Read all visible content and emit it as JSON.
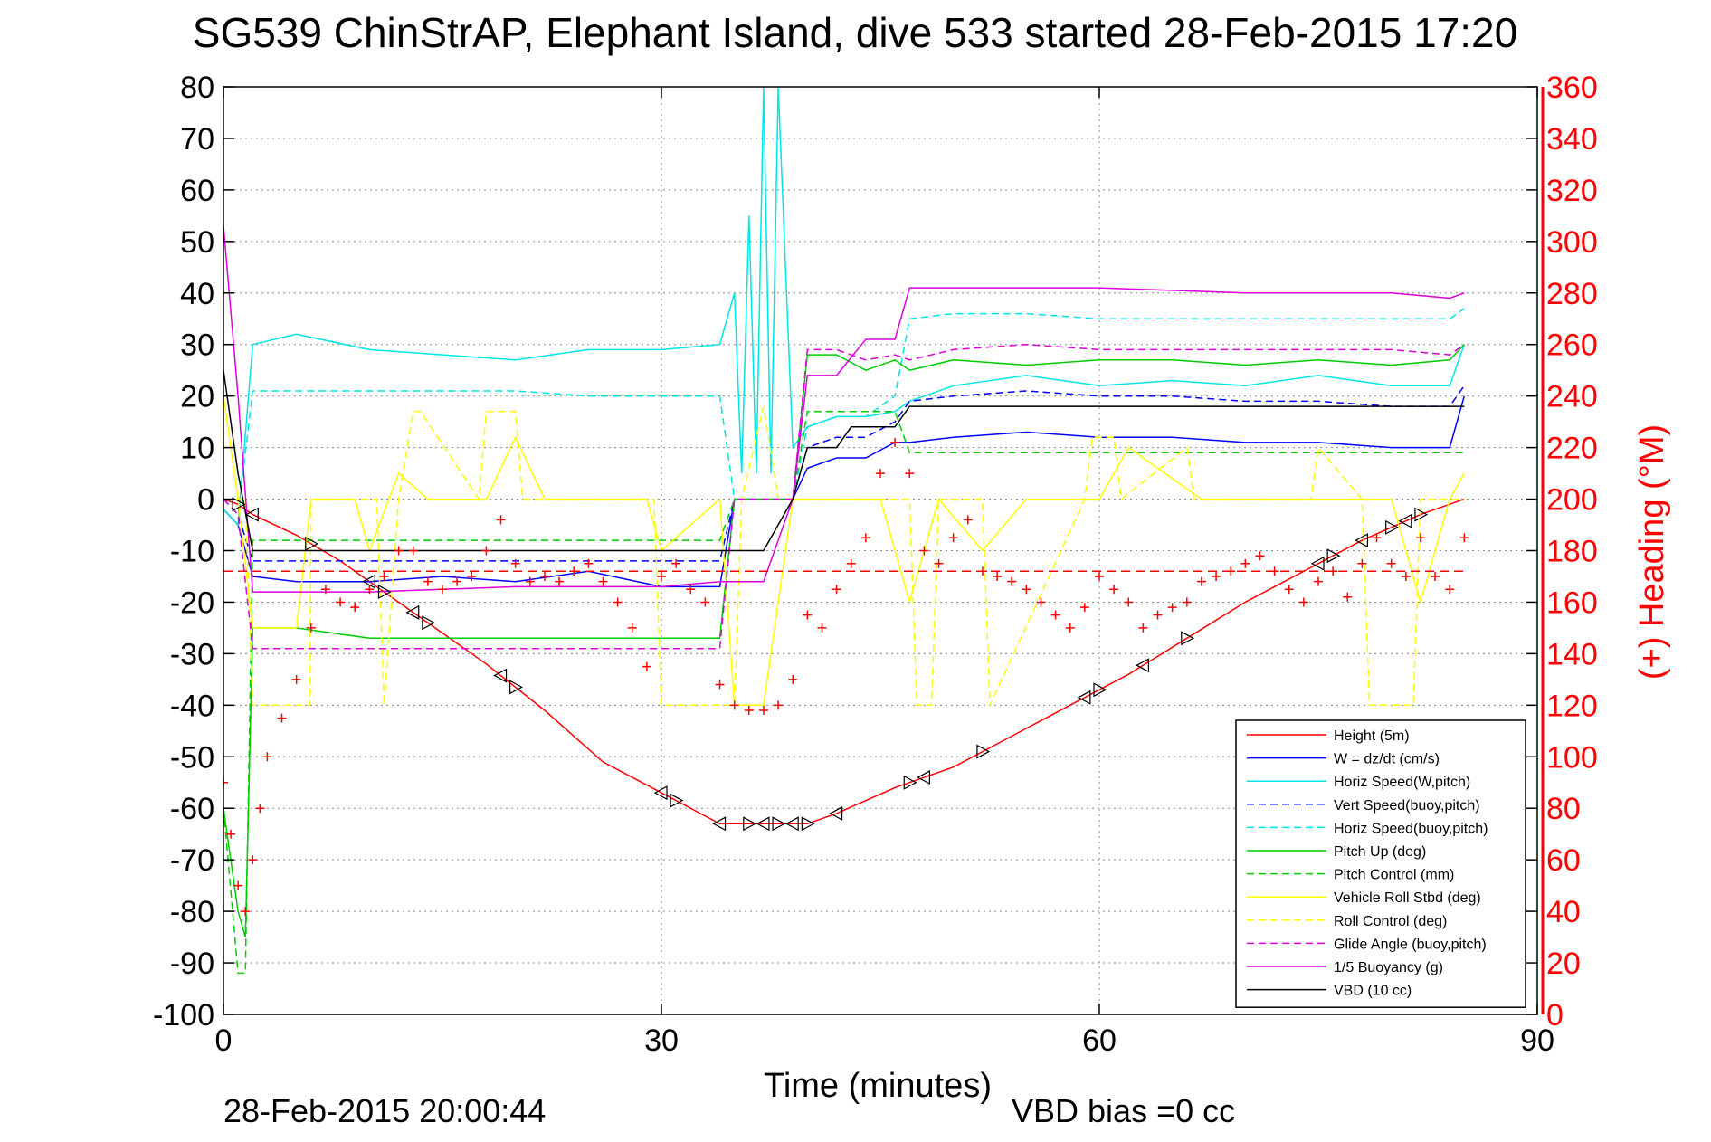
{
  "chart_data": {
    "type": "line",
    "title": "SG539 ChinStrAP, Elephant Island, dive 533 started 28-Feb-2015 17:20",
    "xlabel": "Time (minutes)",
    "ylabel": "",
    "ylabel_right": "(+) Heading (°M)",
    "xlim": [
      0,
      90
    ],
    "ylim": [
      -100,
      80
    ],
    "ylim_right": [
      0,
      360
    ],
    "xticks": [
      0,
      30,
      60,
      90
    ],
    "yticks": [
      -100,
      -90,
      -80,
      -70,
      -60,
      -50,
      -40,
      -30,
      -20,
      -10,
      0,
      10,
      20,
      30,
      40,
      50,
      60,
      70,
      80
    ],
    "yticks_right": [
      0,
      20,
      40,
      60,
      80,
      100,
      120,
      140,
      160,
      180,
      200,
      220,
      240,
      260,
      280,
      300,
      320,
      340,
      360
    ],
    "grid": true,
    "legend_position": "bottom-right",
    "footer_left": "28-Feb-2015 20:00:44",
    "footer_right": "VBD bias =0 cc",
    "series": [
      {
        "name": "Height (5m)",
        "color": "#ff0000",
        "dash": "solid",
        "x": [
          0,
          1,
          2,
          5,
          8,
          11,
          14,
          18,
          22,
          26,
          30,
          34,
          36,
          38,
          40,
          42,
          46,
          50,
          54,
          58,
          62,
          66,
          70,
          74,
          78,
          82,
          85
        ],
        "y": [
          0,
          -1,
          -3,
          -7,
          -12,
          -18,
          -24,
          -32,
          -41,
          -51,
          -57,
          -63,
          -63,
          -63,
          -63,
          -61,
          -56,
          -52,
          -46,
          -40,
          -34,
          -27,
          -20,
          -14,
          -8,
          -3,
          0
        ]
      },
      {
        "name": "W = dz/dt (cm/s)",
        "color": "#0000ff",
        "dash": "solid",
        "x": [
          0,
          1,
          2,
          5,
          10,
          15,
          20,
          25,
          30,
          34,
          35,
          37,
          39,
          40,
          42,
          44,
          46,
          47,
          50,
          55,
          60,
          65,
          70,
          75,
          80,
          84,
          85
        ],
        "y": [
          -2,
          -5,
          -15,
          -16,
          -16,
          -15,
          -16,
          -14,
          -17,
          -17,
          0,
          0,
          0,
          6,
          8,
          8,
          11,
          11,
          12,
          13,
          12,
          12,
          11,
          11,
          10,
          10,
          20
        ]
      },
      {
        "name": "Horiz Speed(W,pitch)",
        "color": "#00e5e5",
        "dash": "solid",
        "x": [
          0,
          1,
          2,
          5,
          10,
          15,
          20,
          25,
          30,
          34,
          35,
          35.5,
          36,
          36.5,
          37,
          37.5,
          38,
          39,
          40,
          42,
          44,
          46,
          47,
          50,
          55,
          60,
          65,
          70,
          75,
          80,
          84,
          85
        ],
        "y": [
          -2,
          -5,
          30,
          32,
          29,
          28,
          27,
          29,
          29,
          30,
          40,
          5,
          55,
          5,
          80,
          5,
          80,
          10,
          14,
          16,
          16,
          17,
          19,
          22,
          24,
          22,
          23,
          22,
          24,
          22,
          22,
          30
        ]
      },
      {
        "name": "Vert Speed(buoy,pitch)",
        "color": "#0000ff",
        "dash": "dashed",
        "x": [
          0,
          1,
          2,
          5,
          10,
          15,
          20,
          25,
          30,
          34,
          35,
          37,
          39,
          40,
          42,
          44,
          46,
          47,
          50,
          55,
          60,
          65,
          70,
          75,
          80,
          84,
          85
        ],
        "y": [
          0,
          -3,
          -12,
          -12,
          -12,
          -12,
          -12,
          -12,
          -12,
          -12,
          0,
          0,
          0,
          10,
          12,
          12,
          15,
          19,
          20,
          21,
          20,
          20,
          19,
          19,
          18,
          18,
          22
        ]
      },
      {
        "name": "Horiz Speed(buoy,pitch)",
        "color": "#00e5e5",
        "dash": "dashed",
        "x": [
          0,
          1,
          2,
          5,
          10,
          15,
          20,
          25,
          30,
          34,
          35,
          37,
          39,
          40,
          42,
          44,
          46,
          47,
          50,
          55,
          60,
          65,
          70,
          75,
          80,
          84,
          85
        ],
        "y": [
          0,
          -3,
          21,
          21,
          21,
          21,
          21,
          20,
          20,
          20,
          0,
          0,
          0,
          14,
          16,
          16,
          20,
          35,
          36,
          36,
          35,
          35,
          35,
          35,
          35,
          35,
          37
        ]
      },
      {
        "name": "Pitch Up (deg)",
        "color": "#00cc00",
        "dash": "solid",
        "x": [
          0,
          1,
          1.5,
          2,
          5,
          10,
          15,
          20,
          25,
          30,
          34,
          35,
          37,
          39,
          40,
          42,
          44,
          46,
          47,
          50,
          55,
          60,
          65,
          70,
          75,
          80,
          84,
          85
        ],
        "y": [
          -60,
          -80,
          -85,
          -25,
          -25,
          -27,
          -27,
          -27,
          -27,
          -27,
          -27,
          0,
          0,
          0,
          28,
          28,
          25,
          27,
          25,
          27,
          26,
          27,
          27,
          26,
          27,
          26,
          27,
          30
        ]
      },
      {
        "name": "Pitch Control (mm)",
        "color": "#00cc00",
        "dash": "dashed",
        "x": [
          0,
          1,
          1.5,
          2,
          10,
          20,
          30,
          34,
          35,
          37,
          39,
          40,
          46,
          47,
          60,
          70,
          80,
          85
        ],
        "y": [
          -60,
          -92,
          -92,
          -8,
          -8,
          -8,
          -8,
          -8,
          0,
          0,
          0,
          17,
          17,
          9,
          9,
          9,
          9,
          9
        ]
      },
      {
        "name": "Vehicle Roll Stbd (deg)",
        "color": "#ffff00",
        "dash": "solid",
        "x": [
          0,
          1,
          2,
          5,
          6,
          9,
          10,
          12,
          14,
          16,
          18,
          20,
          22,
          25,
          29,
          30,
          34,
          35,
          37,
          39,
          40,
          45,
          47,
          49,
          52,
          55,
          60,
          62,
          67,
          70,
          75,
          80,
          82,
          84,
          85
        ],
        "y": [
          20,
          0,
          -25,
          -25,
          0,
          0,
          -10,
          5,
          0,
          0,
          0,
          12,
          0,
          0,
          0,
          -10,
          0,
          -40,
          -40,
          0,
          0,
          0,
          -20,
          0,
          -10,
          0,
          0,
          10,
          0,
          0,
          0,
          0,
          -20,
          0,
          5
        ]
      },
      {
        "name": "Roll Control (deg)",
        "color": "#ffff00",
        "dash": "dashed",
        "x": [
          0,
          1.5,
          2,
          5.9,
          6,
          10.5,
          11,
          12,
          13,
          13.5,
          17.5,
          18,
          20,
          20.5,
          29.5,
          30,
          35,
          35.5,
          37,
          38,
          47,
          47.5,
          48.5,
          49,
          52,
          52.5,
          59,
          59.5,
          61,
          61.5,
          66,
          66.5,
          74.5,
          75,
          78,
          78.5,
          81.5,
          82,
          85
        ],
        "y": [
          0,
          0,
          -40,
          -40,
          0,
          0,
          -40,
          0,
          17,
          17,
          0,
          17,
          17,
          0,
          0,
          -40,
          -40,
          0,
          18,
          0,
          0,
          -40,
          -40,
          0,
          0,
          -40,
          0,
          12,
          12,
          0,
          10,
          0,
          0,
          10,
          0,
          -40,
          -40,
          0,
          0
        ]
      },
      {
        "name": "Glide Angle (buoy,pitch)",
        "color": "#dd00dd",
        "dash": "dashed",
        "x": [
          0,
          1,
          2,
          5,
          10,
          15,
          20,
          25,
          30,
          34,
          35,
          37,
          39,
          40,
          42,
          44,
          46,
          47,
          50,
          55,
          60,
          65,
          70,
          75,
          80,
          84,
          85
        ],
        "y": [
          0,
          -3,
          -29,
          -29,
          -29,
          -29,
          -29,
          -29,
          -29,
          -29,
          0,
          0,
          0,
          29,
          29,
          27,
          28,
          27,
          29,
          30,
          29,
          29,
          29,
          29,
          29,
          28,
          30
        ]
      },
      {
        "name": "1/5 Buoyancy (g)",
        "color": "#dd00dd",
        "dash": "solid",
        "x": [
          0,
          1,
          2,
          10,
          20,
          30,
          34,
          37,
          39,
          40,
          42,
          44,
          46,
          47,
          48,
          55,
          60,
          70,
          80,
          84,
          85
        ],
        "y": [
          53,
          20,
          -18,
          -18,
          -17,
          -17,
          -16,
          -16,
          0,
          24,
          24,
          31,
          31,
          41,
          41,
          41,
          41,
          40,
          40,
          39,
          40
        ]
      },
      {
        "name": "VBD (10 cc)",
        "color": "#000000",
        "dash": "solid",
        "x": [
          0,
          1,
          2,
          10,
          20,
          30,
          34,
          36,
          37,
          39,
          40,
          42,
          43,
          44,
          46,
          47,
          60,
          70,
          80,
          84,
          85
        ],
        "y": [
          25,
          5,
          -10,
          -10,
          -10,
          -10,
          -10,
          -10,
          -10,
          0,
          10,
          10,
          14,
          14,
          14,
          18,
          18,
          18,
          18,
          18,
          18
        ]
      }
    ],
    "heading_series": {
      "name": "Heading",
      "color": "#ff0000",
      "marker": "+",
      "axis": "right",
      "x": [
        0,
        0.5,
        1,
        1.5,
        2,
        2.5,
        3,
        4,
        5,
        6,
        7,
        8,
        9,
        10,
        11,
        12,
        13,
        14,
        15,
        16,
        17,
        18,
        19,
        20,
        21,
        22,
        23,
        24,
        25,
        26,
        27,
        28,
        29,
        30,
        31,
        32,
        33,
        34,
        35,
        36,
        37,
        38,
        39,
        40,
        41,
        42,
        43,
        44,
        45,
        46,
        47,
        48,
        49,
        50,
        51,
        52,
        53,
        54,
        55,
        56,
        57,
        58,
        59,
        60,
        61,
        62,
        63,
        64,
        65,
        66,
        67,
        68,
        69,
        70,
        71,
        72,
        73,
        74,
        75,
        76,
        77,
        78,
        79,
        80,
        81,
        82,
        83,
        84,
        85
      ],
      "y": [
        90,
        70,
        50,
        40,
        60,
        80,
        100,
        115,
        130,
        150,
        165,
        160,
        158,
        165,
        170,
        180,
        180,
        168,
        165,
        168,
        170,
        180,
        192,
        175,
        168,
        170,
        168,
        172,
        175,
        168,
        160,
        150,
        135,
        170,
        175,
        165,
        160,
        128,
        120,
        118,
        118,
        120,
        130,
        155,
        150,
        165,
        175,
        185,
        210,
        222,
        210,
        180,
        175,
        185,
        192,
        172,
        170,
        168,
        165,
        160,
        155,
        150,
        158,
        170,
        165,
        160,
        150,
        155,
        158,
        160,
        168,
        170,
        172,
        175,
        178,
        172,
        165,
        160,
        168,
        172,
        162,
        175,
        185,
        175,
        170,
        185,
        170,
        165,
        185
      ]
    },
    "heading_mean": {
      "value": 172,
      "color": "#ff0000",
      "dash": "dashed"
    },
    "markers_on_height": {
      "x": [
        1,
        2,
        6,
        10,
        11,
        13,
        14,
        19,
        20,
        30,
        31,
        34,
        36,
        37,
        38,
        39,
        40,
        42,
        47,
        48,
        52,
        59,
        60,
        63,
        66,
        75,
        76,
        78,
        80,
        81,
        82
      ]
    }
  }
}
